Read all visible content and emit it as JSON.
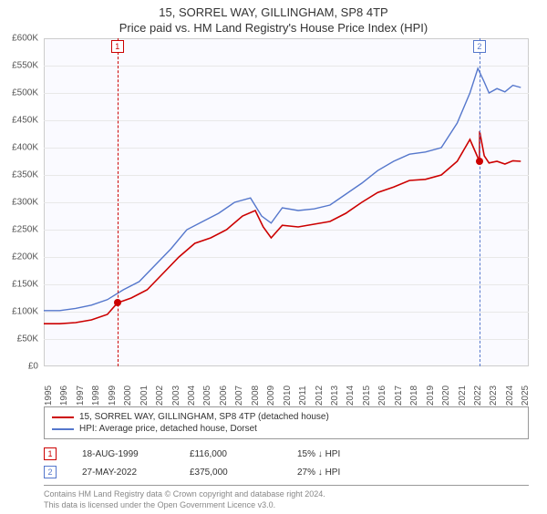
{
  "title_line1": "15, SORREL WAY, GILLINGHAM, SP8 4TP",
  "title_line2": "Price paid vs. HM Land Registry's House Price Index (HPI)",
  "chart": {
    "type": "line",
    "background_color": "#fafaff",
    "grid_color": "#e8e8e8",
    "axis_color": "#cccccc",
    "y": {
      "min": 0,
      "max": 600000,
      "step": 50000,
      "prefix": "£",
      "suffix_k": true,
      "tick_labels": [
        "£0",
        "£50K",
        "£100K",
        "£150K",
        "£200K",
        "£250K",
        "£300K",
        "£350K",
        "£400K",
        "£450K",
        "£500K",
        "£550K",
        "£600K"
      ]
    },
    "x": {
      "min": 1995,
      "max": 2025.5,
      "step": 1,
      "tick_labels": [
        "1995",
        "1996",
        "1997",
        "1998",
        "1999",
        "2000",
        "2001",
        "2002",
        "2003",
        "2004",
        "2005",
        "2006",
        "2007",
        "2008",
        "2009",
        "2010",
        "2011",
        "2012",
        "2013",
        "2014",
        "2015",
        "2016",
        "2017",
        "2018",
        "2019",
        "2020",
        "2021",
        "2022",
        "2023",
        "2024",
        "2025"
      ]
    },
    "series": [
      {
        "name": "property",
        "color": "#cc0000",
        "width": 1.6,
        "points": [
          [
            1995.0,
            78000
          ],
          [
            1996.0,
            78000
          ],
          [
            1997.0,
            80000
          ],
          [
            1998.0,
            85000
          ],
          [
            1999.0,
            95000
          ],
          [
            1999.63,
            116000
          ],
          [
            2000.5,
            125000
          ],
          [
            2001.5,
            140000
          ],
          [
            2002.5,
            170000
          ],
          [
            2003.5,
            200000
          ],
          [
            2004.5,
            225000
          ],
          [
            2005.5,
            235000
          ],
          [
            2006.5,
            250000
          ],
          [
            2007.5,
            275000
          ],
          [
            2008.3,
            285000
          ],
          [
            2008.8,
            255000
          ],
          [
            2009.3,
            235000
          ],
          [
            2010.0,
            258000
          ],
          [
            2011.0,
            255000
          ],
          [
            2012.0,
            260000
          ],
          [
            2013.0,
            265000
          ],
          [
            2014.0,
            280000
          ],
          [
            2015.0,
            300000
          ],
          [
            2016.0,
            318000
          ],
          [
            2017.0,
            328000
          ],
          [
            2018.0,
            340000
          ],
          [
            2019.0,
            342000
          ],
          [
            2020.0,
            350000
          ],
          [
            2021.0,
            375000
          ],
          [
            2021.8,
            415000
          ],
          [
            2022.4,
            375000
          ],
          [
            2022.41,
            430000
          ],
          [
            2022.7,
            385000
          ],
          [
            2023.0,
            372000
          ],
          [
            2023.5,
            375000
          ],
          [
            2024.0,
            370000
          ],
          [
            2024.5,
            376000
          ],
          [
            2025.0,
            375000
          ]
        ]
      },
      {
        "name": "hpi",
        "color": "#5577cc",
        "width": 1.4,
        "points": [
          [
            1995.0,
            102000
          ],
          [
            1996.0,
            102000
          ],
          [
            1997.0,
            106000
          ],
          [
            1998.0,
            112000
          ],
          [
            1999.0,
            122000
          ],
          [
            2000.0,
            140000
          ],
          [
            2001.0,
            155000
          ],
          [
            2002.0,
            185000
          ],
          [
            2003.0,
            215000
          ],
          [
            2004.0,
            250000
          ],
          [
            2005.0,
            265000
          ],
          [
            2006.0,
            280000
          ],
          [
            2007.0,
            300000
          ],
          [
            2008.0,
            308000
          ],
          [
            2008.7,
            275000
          ],
          [
            2009.3,
            262000
          ],
          [
            2010.0,
            290000
          ],
          [
            2011.0,
            285000
          ],
          [
            2012.0,
            288000
          ],
          [
            2013.0,
            295000
          ],
          [
            2014.0,
            315000
          ],
          [
            2015.0,
            335000
          ],
          [
            2016.0,
            358000
          ],
          [
            2017.0,
            375000
          ],
          [
            2018.0,
            388000
          ],
          [
            2019.0,
            392000
          ],
          [
            2020.0,
            400000
          ],
          [
            2021.0,
            445000
          ],
          [
            2021.8,
            500000
          ],
          [
            2022.3,
            545000
          ],
          [
            2022.7,
            520000
          ],
          [
            2023.0,
            500000
          ],
          [
            2023.5,
            508000
          ],
          [
            2024.0,
            502000
          ],
          [
            2024.5,
            514000
          ],
          [
            2025.0,
            510000
          ]
        ]
      }
    ],
    "markers": [
      {
        "id": "1",
        "x": 1999.63,
        "color": "#cc0000",
        "dot_y": 116000
      },
      {
        "id": "2",
        "x": 2022.4,
        "color": "#5577cc",
        "dot_y": 375000
      }
    ]
  },
  "legend": {
    "items": [
      {
        "color": "#cc0000",
        "label": "15, SORREL WAY, GILLINGHAM, SP8 4TP (detached house)"
      },
      {
        "color": "#5577cc",
        "label": "HPI: Average price, detached house, Dorset"
      }
    ]
  },
  "transactions": [
    {
      "id": "1",
      "color": "#cc0000",
      "date": "18-AUG-1999",
      "price": "£116,000",
      "vs": "15% ↓ HPI"
    },
    {
      "id": "2",
      "color": "#5577cc",
      "date": "27-MAY-2022",
      "price": "£375,000",
      "vs": "27% ↓ HPI"
    }
  ],
  "footer": {
    "line1": "Contains HM Land Registry data © Crown copyright and database right 2024.",
    "line2": "This data is licensed under the Open Government Licence v3.0."
  }
}
